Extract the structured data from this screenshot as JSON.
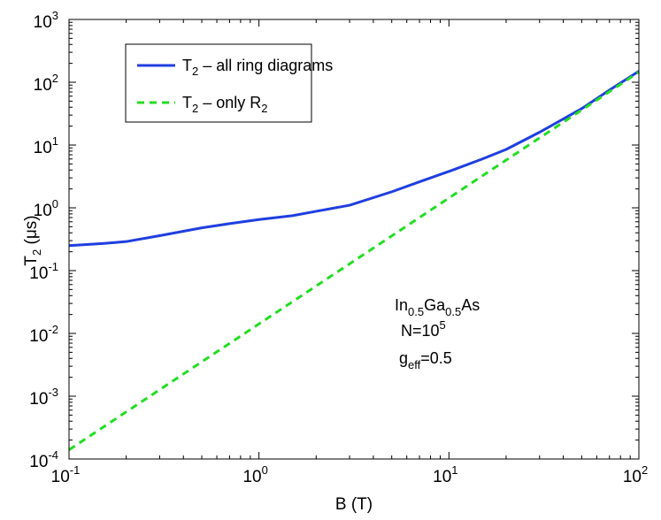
{
  "chart_data": {
    "type": "line",
    "title": "",
    "xscale": "log",
    "yscale": "log",
    "xlim": [
      0.1,
      100
    ],
    "ylim": [
      0.0001,
      1000
    ],
    "xlabel": {
      "main": "B (T)"
    },
    "ylabel": {
      "main": "T",
      "sub": "2",
      "rest": " (μs)"
    },
    "x_ticks": [
      {
        "value": 0.1,
        "base": "10",
        "exp": "-1"
      },
      {
        "value": 1,
        "base": "10",
        "exp": "0"
      },
      {
        "value": 10,
        "base": "10",
        "exp": "1"
      },
      {
        "value": 100,
        "base": "10",
        "exp": "2"
      }
    ],
    "y_ticks": [
      {
        "value": 0.0001,
        "base": "10",
        "exp": "-4"
      },
      {
        "value": 0.001,
        "base": "10",
        "exp": "-3"
      },
      {
        "value": 0.01,
        "base": "10",
        "exp": "-2"
      },
      {
        "value": 0.1,
        "base": "10",
        "exp": "-1"
      },
      {
        "value": 1,
        "base": "10",
        "exp": "0"
      },
      {
        "value": 10,
        "base": "10",
        "exp": "1"
      },
      {
        "value": 100,
        "base": "10",
        "exp": "2"
      },
      {
        "value": 1000,
        "base": "10",
        "exp": "3"
      }
    ],
    "legend": {
      "placement": "top-left",
      "entries": [
        {
          "name": "T",
          "sub": "2",
          "rest": " – all ring diagrams",
          "sub2": "",
          "style": "solid",
          "color": "#1f3fe0"
        },
        {
          "name": "T",
          "sub": "2",
          "rest": " – only R",
          "sub2": "2",
          "style": "dashed",
          "color": "#22dd22"
        }
      ]
    },
    "series": [
      {
        "name": "T2 – all ring diagrams",
        "color": "#1f3fe0",
        "style": "solid",
        "x": [
          0.1,
          0.15,
          0.2,
          0.3,
          0.5,
          0.7,
          1,
          1.5,
          2,
          3,
          5,
          7,
          10,
          15,
          20,
          30,
          50,
          70,
          100
        ],
        "y": [
          0.25,
          0.27,
          0.29,
          0.36,
          0.48,
          0.56,
          0.65,
          0.75,
          0.88,
          1.1,
          1.8,
          2.6,
          3.8,
          6.0,
          8.5,
          16,
          38,
          75,
          150
        ]
      },
      {
        "name": "T2 – only R2",
        "color": "#22dd22",
        "style": "dashed",
        "x": [
          0.1,
          100
        ],
        "y": [
          0.00014,
          145
        ]
      }
    ],
    "annotations": [
      {
        "parts": [
          [
            "In",
            ""
          ],
          [
            "0.5",
            "sub"
          ],
          [
            "Ga",
            ""
          ],
          [
            "0.5",
            "sub"
          ],
          [
            "As",
            ""
          ]
        ]
      },
      {
        "parts": [
          [
            "N=10",
            ""
          ],
          [
            "5",
            "sup"
          ]
        ]
      },
      {
        "parts": [
          [
            "g",
            ""
          ],
          [
            "eff",
            "sub"
          ],
          [
            "=0.5",
            ""
          ]
        ]
      }
    ]
  }
}
